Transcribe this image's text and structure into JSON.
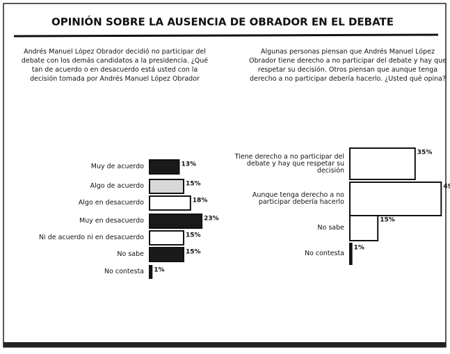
{
  "title": "OPINIÓN SOBRE LA AUSENCIA DE OBRADOR EN EL DEBATE",
  "chart_data": [
    {
      "type": "barh",
      "subtitle": "Andrés Manuel López Obrador decidió no participar del debate con los demás candidatos a la presidencia. ¿Qué tan de acuerdo o en desacuerdo está usted con la decisión tomada por Andrés Manuel López Obrador",
      "categories": [
        "Muy de acuerdo",
        "Algo de acuerdo",
        "Algo en desacuerdo",
        "Muy en desacuerdo",
        "Ni de acuerdo ni en desacuerdo",
        "No sabe",
        "No contesta"
      ],
      "values": [
        13,
        15,
        18,
        23,
        15,
        15,
        1
      ],
      "value_labels": [
        "13%",
        "15%",
        "18%",
        "23%",
        "15%",
        "15%",
        "1%"
      ],
      "colors": [
        "#1a1a1a",
        "#d8d8d8",
        "#ffffff",
        "#1a1a1a",
        "#ffffff",
        "#1a1a1a",
        "#1a1a1a"
      ],
      "xlim": [
        0,
        30
      ]
    },
    {
      "type": "barh",
      "subtitle": "Algunas personas piensan que Andrés Manuel López Obrador tiene derecho a no participar del debate y hay que respetar su decisión. Otros piensan que aunque tenga derecho a no participar debería hacerlo. ¿Usted qué opina?",
      "categories": [
        "Tiene derecho a no participar del debate y hay que respetar su decisión",
        "Aunque tenga derecho a no participar debería hacerlo",
        "No sabe",
        "No contesta"
      ],
      "values": [
        35,
        49,
        15,
        1
      ],
      "value_labels": [
        "35%",
        "49",
        "15%",
        "1%"
      ],
      "colors": [
        "#ffffff",
        "#ffffff",
        "#ffffff",
        "#1a1a1a"
      ],
      "xlim": [
        0,
        50
      ]
    }
  ]
}
